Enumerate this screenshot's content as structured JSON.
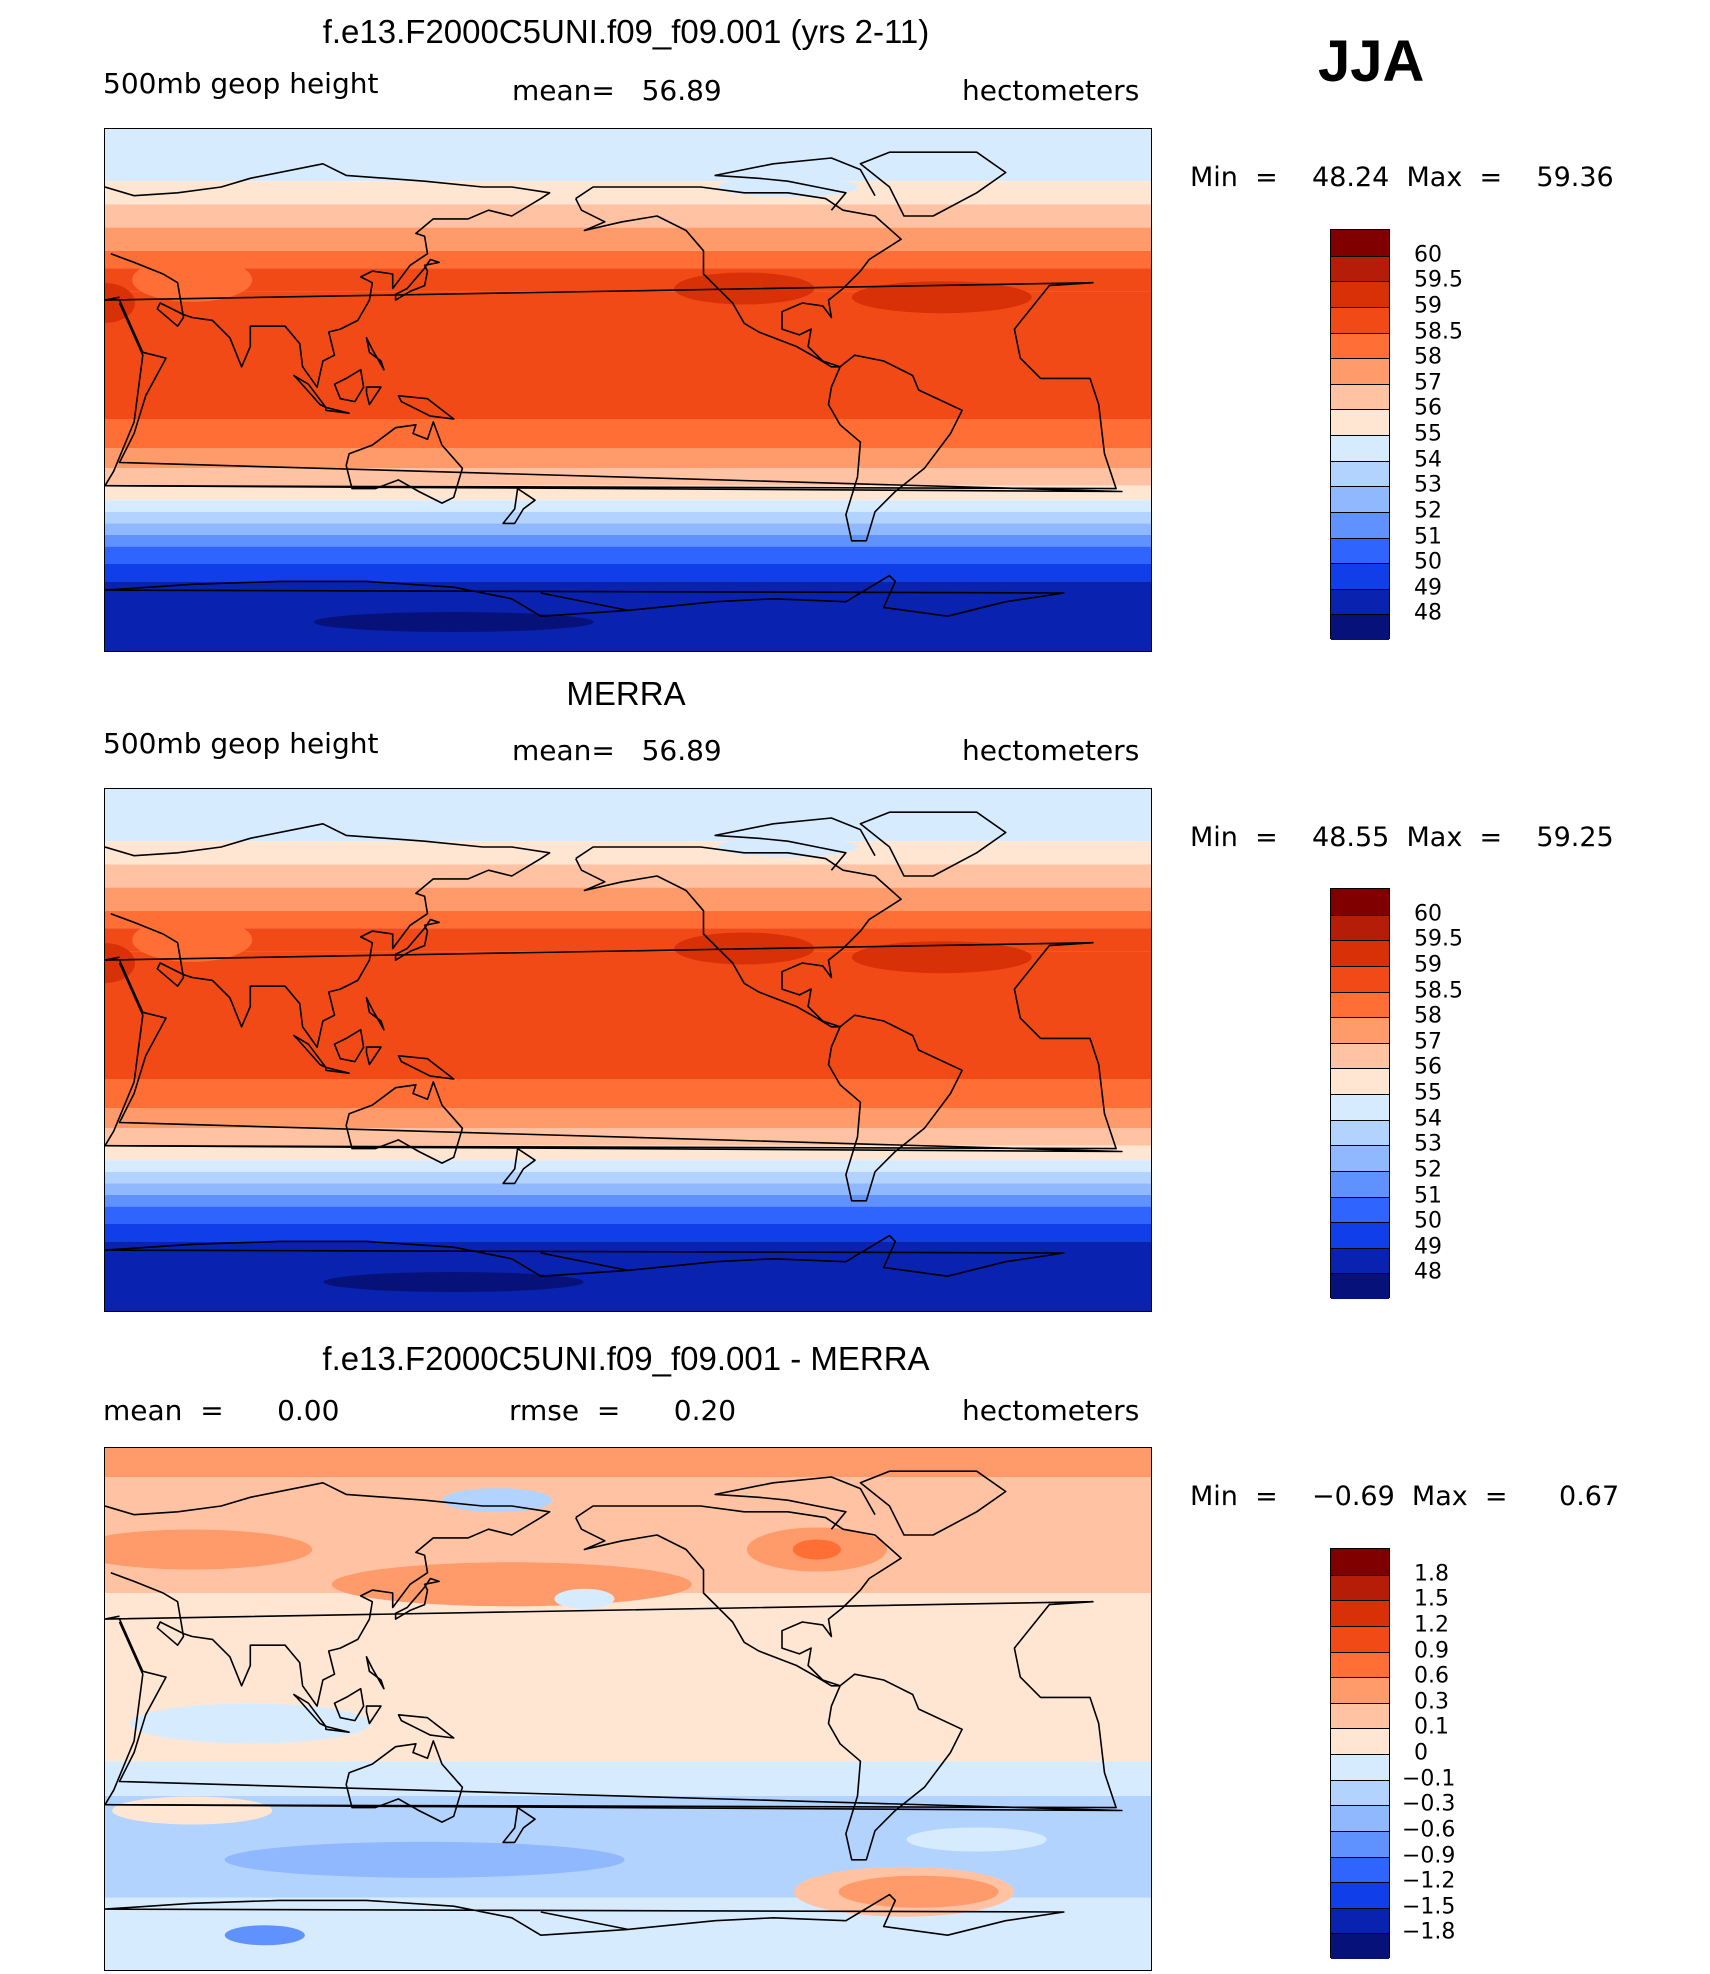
{
  "season": "JJA",
  "units": "hectometers",
  "panels": [
    {
      "title": "f.e13.F2000C5UNI.f09_f09.001 (yrs 2-11)",
      "variable": "500mb geop height",
      "stat": "mean=   56.89",
      "units": "hectometers",
      "minmax": "Min  =    48.24  Max  =    59.36",
      "map_alt": "Global map of 500mb geopotential height, model run"
    },
    {
      "title": "MERRA",
      "variable": "500mb geop height",
      "stat": "mean=   56.89",
      "units": "hectometers",
      "minmax": "Min  =    48.55  Max  =    59.25",
      "map_alt": "Global map of 500mb geopotential height, MERRA reanalysis"
    },
    {
      "title": "f.e13.F2000C5UNI.f09_f09.001 - MERRA",
      "stat_left": "mean  =      0.00",
      "stat_mid": "rmse  =      0.20",
      "units": "hectometers",
      "minmax": "Min  =    −0.69  Max  =      0.67",
      "map_alt": "Global map of difference model minus MERRA"
    }
  ],
  "colorbars": {
    "height": {
      "labels": [
        "60",
        "59.5",
        "59",
        "58.5",
        "58",
        "57",
        "56",
        "55",
        "54",
        "53",
        "52",
        "51",
        "50",
        "49",
        "48"
      ],
      "colors": [
        "#800000",
        "#b51d08",
        "#d83108",
        "#f24a16",
        "#ff6e35",
        "#ff9a6a",
        "#ffc3a3",
        "#ffe6d3",
        "#d7ebff",
        "#b3d3ff",
        "#8fb8ff",
        "#5f91ff",
        "#2f64ff",
        "#103ee8",
        "#0a22b0",
        "#06127a"
      ]
    },
    "diff": {
      "labels": [
        "1.8",
        "1.5",
        "1.2",
        "0.9",
        "0.6",
        "0.3",
        "0.1",
        "0",
        "−0.1",
        "−0.3",
        "−0.6",
        "−0.9",
        "−1.2",
        "−1.5",
        "−1.8"
      ],
      "colors": [
        "#800000",
        "#b51d08",
        "#d83108",
        "#f24a16",
        "#ff6e35",
        "#ff9a6a",
        "#ffc3a3",
        "#ffe6d3",
        "#d7ebff",
        "#b3d3ff",
        "#8fb8ff",
        "#5f91ff",
        "#2f64ff",
        "#103ee8",
        "#0a22b0",
        "#06127a"
      ]
    }
  }
}
